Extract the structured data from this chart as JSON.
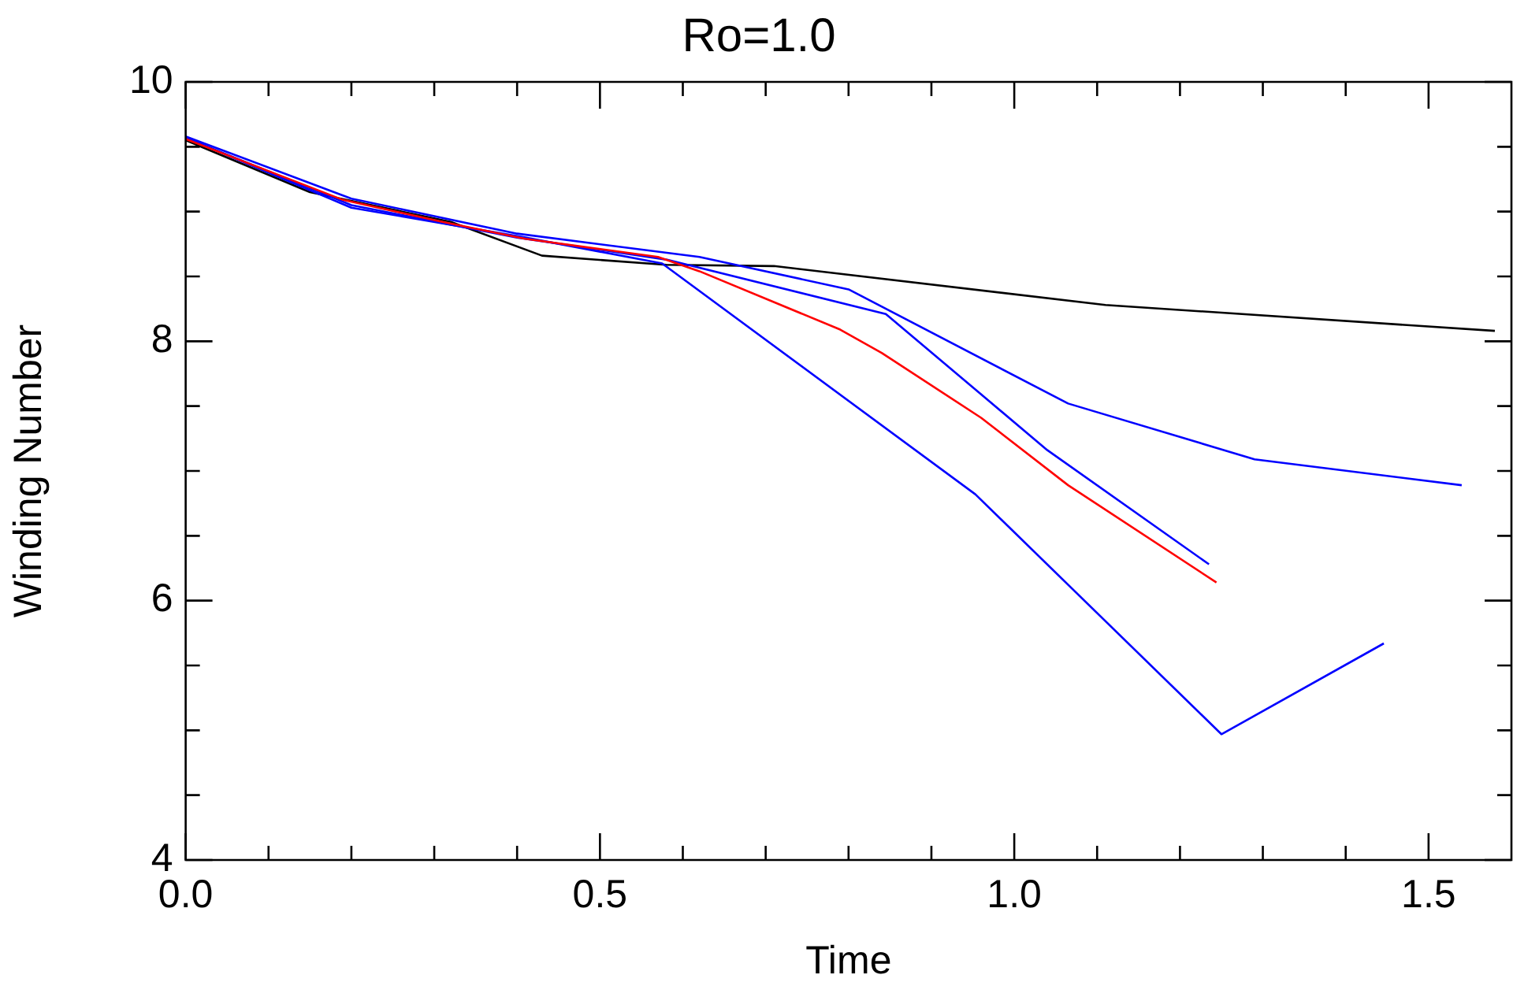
{
  "chart_data": {
    "type": "line",
    "title": "Ro=1.0",
    "xlabel": "Time",
    "ylabel": "Winding Number",
    "xlim": [
      0,
      1.6
    ],
    "ylim": [
      4,
      10
    ],
    "xticks": [
      {
        "value": 0,
        "label": "0.0"
      },
      {
        "value": 0.1,
        "label": null
      },
      {
        "value": 0.2,
        "label": null
      },
      {
        "value": 0.3,
        "label": null
      },
      {
        "value": 0.4,
        "label": null
      },
      {
        "value": 0.5,
        "label": "0.5"
      },
      {
        "value": 0.6,
        "label": null
      },
      {
        "value": 0.7,
        "label": null
      },
      {
        "value": 0.8,
        "label": null
      },
      {
        "value": 0.9,
        "label": null
      },
      {
        "value": 1.0,
        "label": "1.0"
      },
      {
        "value": 1.1,
        "label": null
      },
      {
        "value": 1.2,
        "label": null
      },
      {
        "value": 1.3,
        "label": null
      },
      {
        "value": 1.4,
        "label": null
      },
      {
        "value": 1.5,
        "label": "1.5"
      }
    ],
    "yticks": [
      4,
      {
        "value": 4.5,
        "label": null
      },
      {
        "value": 5,
        "label": null
      },
      {
        "value": 5.5,
        "label": null
      },
      6,
      {
        "value": 6.5,
        "label": null
      },
      {
        "value": 7,
        "label": null
      },
      {
        "value": 7.5,
        "label": null
      },
      8,
      {
        "value": 8.5,
        "label": null
      },
      {
        "value": 9,
        "label": null
      },
      {
        "value": 9.5,
        "label": null
      },
      10
    ],
    "grid": false,
    "legend": false,
    "marker": "none",
    "line_style": "solid",
    "series": [
      {
        "color": "#000000",
        "x": [
          0,
          0.15,
          0.32,
          0.43,
          0.58,
          0.71,
          1.11,
          1.58
        ],
        "values": [
          9.55,
          9.15,
          8.92,
          8.66,
          8.59,
          8.58,
          8.28,
          8.08
        ]
      },
      {
        "color": "#0000ff",
        "x": [
          0,
          0.2,
          0.4,
          0.62,
          0.8,
          1.065,
          1.29,
          1.54
        ],
        "values": [
          9.58,
          9.1,
          8.83,
          8.65,
          8.4,
          7.52,
          7.09,
          6.89
        ]
      },
      {
        "color": "#0000ff",
        "x": [
          0,
          0.2,
          0.4,
          0.58,
          0.845,
          1.04,
          1.235
        ],
        "values": [
          9.57,
          9.05,
          8.8,
          8.63,
          8.21,
          7.16,
          6.28
        ]
      },
      {
        "color": "#0000ff",
        "x": [
          0,
          0.2,
          0.41,
          0.575,
          0.953,
          1.25,
          1.446
        ],
        "values": [
          9.57,
          9.03,
          8.8,
          8.6,
          6.82,
          4.97,
          5.67
        ]
      },
      {
        "color": "#ff0000",
        "x": [
          0,
          0.19,
          0.31,
          0.41,
          0.57,
          0.62,
          0.79,
          0.84,
          0.96,
          1.065,
          1.244
        ],
        "values": [
          9.56,
          9.09,
          8.92,
          8.79,
          8.65,
          8.54,
          8.09,
          7.91,
          7.41,
          6.89,
          6.14
        ]
      }
    ]
  }
}
